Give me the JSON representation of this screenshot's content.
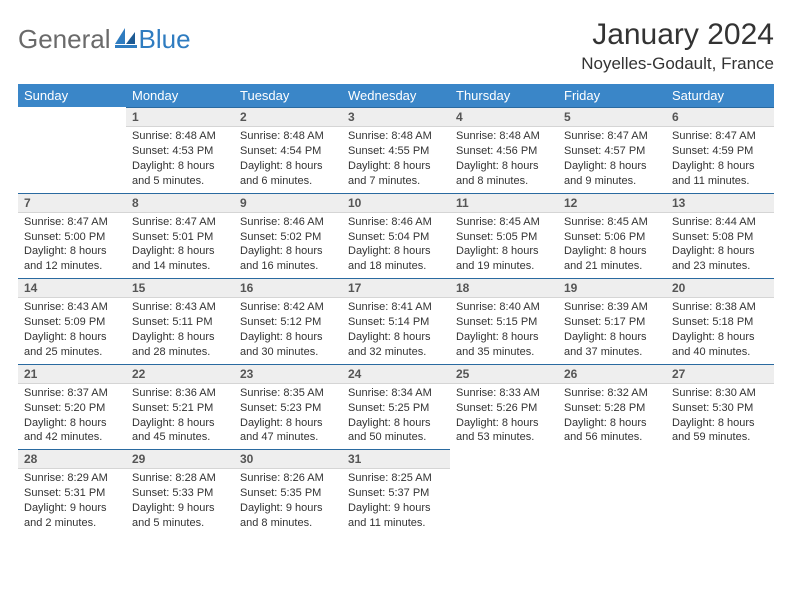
{
  "brand": {
    "text_a": "General",
    "text_b": "Blue"
  },
  "title": "January 2024",
  "location": "Noyelles-Godault, France",
  "calendar": {
    "header_bg": "#3a86c8",
    "header_color": "#ffffff",
    "daynum_bg": "#eeeeee",
    "daynum_border_top": "#2a6aa0",
    "text_color": "#333333",
    "font_size_day_content": 11,
    "weekdays": [
      "Sunday",
      "Monday",
      "Tuesday",
      "Wednesday",
      "Thursday",
      "Friday",
      "Saturday"
    ],
    "weeks": [
      [
        {
          "day": "",
          "sunrise": "",
          "sunset": "",
          "daylight": ""
        },
        {
          "day": "1",
          "sunrise": "Sunrise: 8:48 AM",
          "sunset": "Sunset: 4:53 PM",
          "daylight": "Daylight: 8 hours and 5 minutes."
        },
        {
          "day": "2",
          "sunrise": "Sunrise: 8:48 AM",
          "sunset": "Sunset: 4:54 PM",
          "daylight": "Daylight: 8 hours and 6 minutes."
        },
        {
          "day": "3",
          "sunrise": "Sunrise: 8:48 AM",
          "sunset": "Sunset: 4:55 PM",
          "daylight": "Daylight: 8 hours and 7 minutes."
        },
        {
          "day": "4",
          "sunrise": "Sunrise: 8:48 AM",
          "sunset": "Sunset: 4:56 PM",
          "daylight": "Daylight: 8 hours and 8 minutes."
        },
        {
          "day": "5",
          "sunrise": "Sunrise: 8:47 AM",
          "sunset": "Sunset: 4:57 PM",
          "daylight": "Daylight: 8 hours and 9 minutes."
        },
        {
          "day": "6",
          "sunrise": "Sunrise: 8:47 AM",
          "sunset": "Sunset: 4:59 PM",
          "daylight": "Daylight: 8 hours and 11 minutes."
        }
      ],
      [
        {
          "day": "7",
          "sunrise": "Sunrise: 8:47 AM",
          "sunset": "Sunset: 5:00 PM",
          "daylight": "Daylight: 8 hours and 12 minutes."
        },
        {
          "day": "8",
          "sunrise": "Sunrise: 8:47 AM",
          "sunset": "Sunset: 5:01 PM",
          "daylight": "Daylight: 8 hours and 14 minutes."
        },
        {
          "day": "9",
          "sunrise": "Sunrise: 8:46 AM",
          "sunset": "Sunset: 5:02 PM",
          "daylight": "Daylight: 8 hours and 16 minutes."
        },
        {
          "day": "10",
          "sunrise": "Sunrise: 8:46 AM",
          "sunset": "Sunset: 5:04 PM",
          "daylight": "Daylight: 8 hours and 18 minutes."
        },
        {
          "day": "11",
          "sunrise": "Sunrise: 8:45 AM",
          "sunset": "Sunset: 5:05 PM",
          "daylight": "Daylight: 8 hours and 19 minutes."
        },
        {
          "day": "12",
          "sunrise": "Sunrise: 8:45 AM",
          "sunset": "Sunset: 5:06 PM",
          "daylight": "Daylight: 8 hours and 21 minutes."
        },
        {
          "day": "13",
          "sunrise": "Sunrise: 8:44 AM",
          "sunset": "Sunset: 5:08 PM",
          "daylight": "Daylight: 8 hours and 23 minutes."
        }
      ],
      [
        {
          "day": "14",
          "sunrise": "Sunrise: 8:43 AM",
          "sunset": "Sunset: 5:09 PM",
          "daylight": "Daylight: 8 hours and 25 minutes."
        },
        {
          "day": "15",
          "sunrise": "Sunrise: 8:43 AM",
          "sunset": "Sunset: 5:11 PM",
          "daylight": "Daylight: 8 hours and 28 minutes."
        },
        {
          "day": "16",
          "sunrise": "Sunrise: 8:42 AM",
          "sunset": "Sunset: 5:12 PM",
          "daylight": "Daylight: 8 hours and 30 minutes."
        },
        {
          "day": "17",
          "sunrise": "Sunrise: 8:41 AM",
          "sunset": "Sunset: 5:14 PM",
          "daylight": "Daylight: 8 hours and 32 minutes."
        },
        {
          "day": "18",
          "sunrise": "Sunrise: 8:40 AM",
          "sunset": "Sunset: 5:15 PM",
          "daylight": "Daylight: 8 hours and 35 minutes."
        },
        {
          "day": "19",
          "sunrise": "Sunrise: 8:39 AM",
          "sunset": "Sunset: 5:17 PM",
          "daylight": "Daylight: 8 hours and 37 minutes."
        },
        {
          "day": "20",
          "sunrise": "Sunrise: 8:38 AM",
          "sunset": "Sunset: 5:18 PM",
          "daylight": "Daylight: 8 hours and 40 minutes."
        }
      ],
      [
        {
          "day": "21",
          "sunrise": "Sunrise: 8:37 AM",
          "sunset": "Sunset: 5:20 PM",
          "daylight": "Daylight: 8 hours and 42 minutes."
        },
        {
          "day": "22",
          "sunrise": "Sunrise: 8:36 AM",
          "sunset": "Sunset: 5:21 PM",
          "daylight": "Daylight: 8 hours and 45 minutes."
        },
        {
          "day": "23",
          "sunrise": "Sunrise: 8:35 AM",
          "sunset": "Sunset: 5:23 PM",
          "daylight": "Daylight: 8 hours and 47 minutes."
        },
        {
          "day": "24",
          "sunrise": "Sunrise: 8:34 AM",
          "sunset": "Sunset: 5:25 PM",
          "daylight": "Daylight: 8 hours and 50 minutes."
        },
        {
          "day": "25",
          "sunrise": "Sunrise: 8:33 AM",
          "sunset": "Sunset: 5:26 PM",
          "daylight": "Daylight: 8 hours and 53 minutes."
        },
        {
          "day": "26",
          "sunrise": "Sunrise: 8:32 AM",
          "sunset": "Sunset: 5:28 PM",
          "daylight": "Daylight: 8 hours and 56 minutes."
        },
        {
          "day": "27",
          "sunrise": "Sunrise: 8:30 AM",
          "sunset": "Sunset: 5:30 PM",
          "daylight": "Daylight: 8 hours and 59 minutes."
        }
      ],
      [
        {
          "day": "28",
          "sunrise": "Sunrise: 8:29 AM",
          "sunset": "Sunset: 5:31 PM",
          "daylight": "Daylight: 9 hours and 2 minutes."
        },
        {
          "day": "29",
          "sunrise": "Sunrise: 8:28 AM",
          "sunset": "Sunset: 5:33 PM",
          "daylight": "Daylight: 9 hours and 5 minutes."
        },
        {
          "day": "30",
          "sunrise": "Sunrise: 8:26 AM",
          "sunset": "Sunset: 5:35 PM",
          "daylight": "Daylight: 9 hours and 8 minutes."
        },
        {
          "day": "31",
          "sunrise": "Sunrise: 8:25 AM",
          "sunset": "Sunset: 5:37 PM",
          "daylight": "Daylight: 9 hours and 11 minutes."
        },
        {
          "day": "",
          "sunrise": "",
          "sunset": "",
          "daylight": ""
        },
        {
          "day": "",
          "sunrise": "",
          "sunset": "",
          "daylight": ""
        },
        {
          "day": "",
          "sunrise": "",
          "sunset": "",
          "daylight": ""
        }
      ]
    ]
  }
}
